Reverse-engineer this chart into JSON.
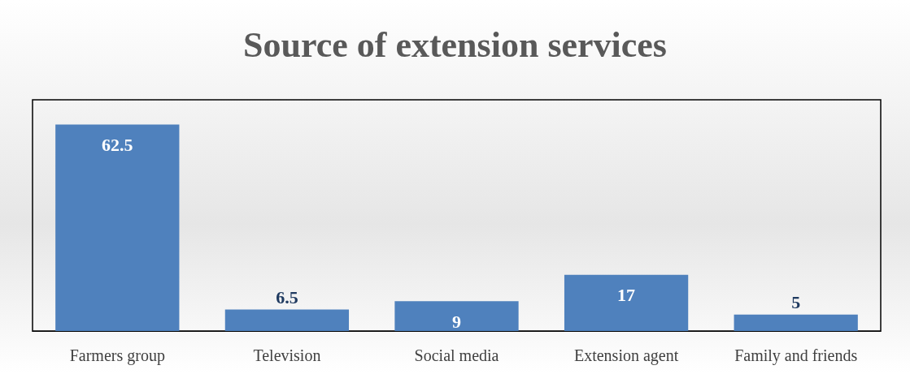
{
  "chart_data": {
    "type": "bar",
    "title": "Source of extension services",
    "categories": [
      "Farmers group",
      "Television",
      "Social media",
      "Extension agent",
      "Family and friends"
    ],
    "values": [
      62.5,
      6.5,
      9,
      17,
      5
    ],
    "color": "#4f81bd",
    "data_labels": true
  }
}
